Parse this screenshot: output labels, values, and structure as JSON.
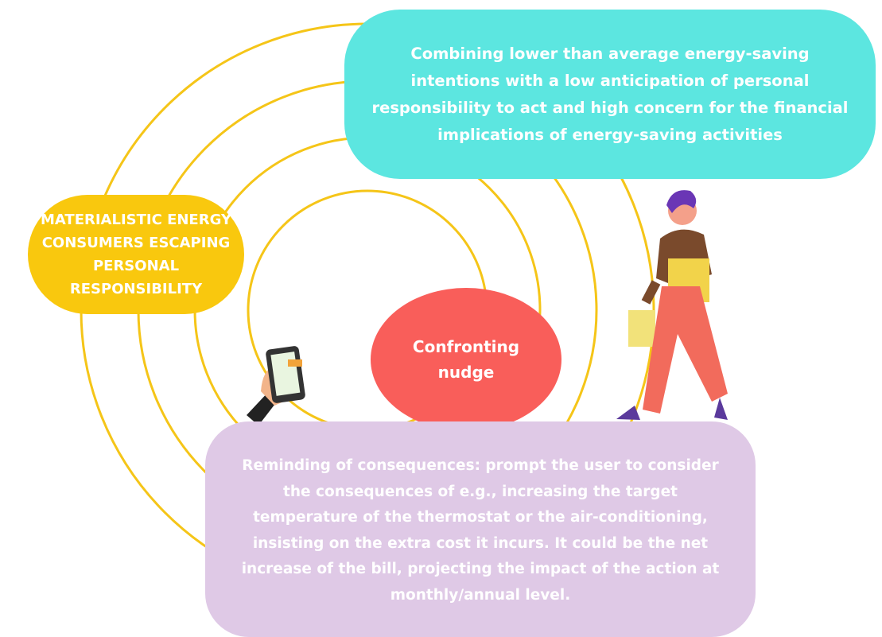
{
  "segment": {
    "label": "MATERIALISTIC ENERGY CONSUMERS ESCAPING PERSONAL RESPONSIBILITY"
  },
  "profile": {
    "text": "Combining lower than average energy-saving intentions with a low anticipation of personal responsibility to act and high concern for the financial implications of energy-saving activities"
  },
  "nudge": {
    "label": "Confronting nudge"
  },
  "example": {
    "text": "Reminding of consequences: prompt the user to consider the consequences of e.g., increasing the target temperature of the thermostat or the air-conditioning, insisting on the extra cost it incurs. It could be the net increase of the bill, projecting the impact of the action at monthly/annual level."
  }
}
